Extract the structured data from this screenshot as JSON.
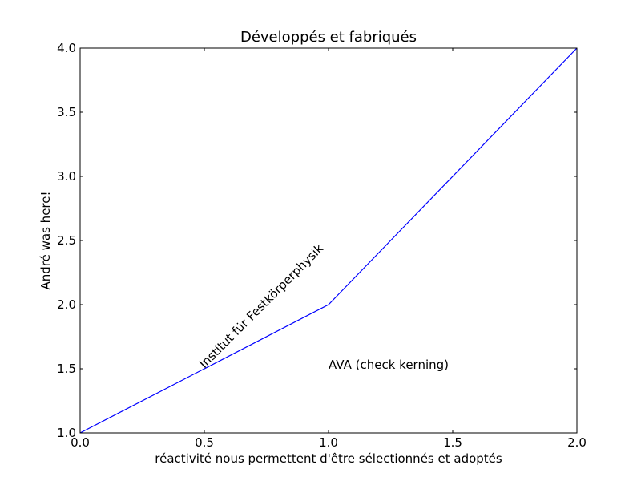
{
  "chart_data": {
    "type": "line",
    "title": "Développés et fabriqués",
    "xlabel": "réactivité nous permettent d'être sélectionnés et adoptés",
    "ylabel": "André was here!",
    "xlim": [
      0.0,
      2.0
    ],
    "ylim": [
      1.0,
      4.0
    ],
    "xticks": [
      0.0,
      0.5,
      1.0,
      1.5,
      2.0
    ],
    "yticks": [
      1.0,
      1.5,
      2.0,
      2.5,
      3.0,
      3.5,
      4.0
    ],
    "xtick_labels": [
      "0.0",
      "0.5",
      "1.0",
      "1.5",
      "2.0"
    ],
    "ytick_labels": [
      "1.0",
      "1.5",
      "2.0",
      "2.5",
      "3.0",
      "3.5",
      "4.0"
    ],
    "grid": false,
    "series": [
      {
        "x": [
          0,
          1,
          2
        ],
        "y": [
          1,
          2,
          4
        ],
        "color": "#0000ff"
      }
    ],
    "annotations": [
      {
        "text": "Institut für Festkörperphysik",
        "x": 0.5,
        "y": 1.5,
        "rotation": 45
      },
      {
        "text": "AVA (check kerning)",
        "x": 1.0,
        "y": 1.5,
        "rotation": 0
      }
    ]
  }
}
